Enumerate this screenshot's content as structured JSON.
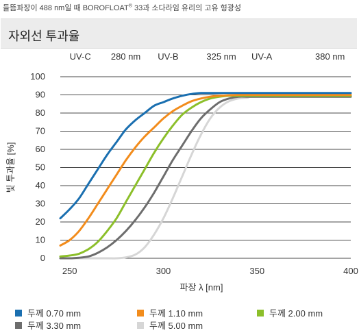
{
  "caption": {
    "prefix": "들뜸파장이 488 nm일 때 BOROFLOAT",
    "reg": "®",
    "suffix": " 33과 소다라임 유리의 고유 형광성"
  },
  "header": {
    "title": "자외선 투과율"
  },
  "chart_data": {
    "type": "line",
    "title": "",
    "xlabel": "파장 λ [nm]",
    "ylabel": "빛 투과율 [%]",
    "xlim": [
      245,
      400
    ],
    "ylim": [
      0,
      100
    ],
    "xticks": [
      250,
      300,
      350,
      400
    ],
    "yticks": [
      0,
      10,
      20,
      30,
      40,
      50,
      60,
      70,
      80,
      90,
      100
    ],
    "grid": "horizontal",
    "legend_position": "bottom",
    "band_labels": [
      {
        "text": "UV-C",
        "x": 250
      },
      {
        "text": "280 nm",
        "x": 272
      },
      {
        "text": "UV-B",
        "x": 297
      },
      {
        "text": "325 nm",
        "x": 323
      },
      {
        "text": "UV-A",
        "x": 347
      },
      {
        "text": "380 nm",
        "x": 381
      }
    ],
    "series": [
      {
        "name": "두께 0.70 mm",
        "color": "#1a6fb0",
        "x": [
          245,
          250,
          255,
          260,
          265,
          270,
          275,
          280,
          285,
          290,
          295,
          300,
          305,
          310,
          315,
          320,
          325,
          330,
          340,
          350,
          400
        ],
        "y": [
          22,
          27,
          33,
          41,
          49,
          57,
          64,
          71,
          76,
          80,
          84,
          86,
          88,
          89.5,
          90.5,
          91,
          91,
          91,
          91,
          91,
          91
        ]
      },
      {
        "name": "두께 1.10 mm",
        "color": "#f28c1c",
        "x": [
          245,
          250,
          255,
          260,
          265,
          270,
          275,
          280,
          285,
          290,
          295,
          300,
          305,
          310,
          315,
          320,
          325,
          330,
          340,
          350,
          400
        ],
        "y": [
          7,
          10,
          15,
          22,
          30,
          38,
          46,
          54,
          61,
          67,
          72,
          77,
          81,
          84,
          86.5,
          88,
          89,
          89.5,
          90,
          90,
          90
        ]
      },
      {
        "name": "두께 2.00 mm",
        "color": "#8cbf2a",
        "x": [
          245,
          250,
          255,
          260,
          265,
          270,
          275,
          280,
          285,
          290,
          295,
          300,
          305,
          310,
          315,
          320,
          325,
          330,
          335,
          340,
          350,
          400
        ],
        "y": [
          1,
          1.5,
          2.5,
          5,
          9,
          15,
          22,
          31,
          40,
          49,
          58,
          66,
          73,
          79,
          83,
          86,
          88,
          89,
          89.5,
          89.5,
          89.5,
          89.5
        ]
      },
      {
        "name": "두께 3.30 mm",
        "color": "#6d6d6d",
        "x": [
          245,
          250,
          255,
          260,
          265,
          270,
          275,
          280,
          285,
          290,
          295,
          300,
          305,
          310,
          315,
          320,
          325,
          330,
          335,
          340,
          345,
          350,
          400
        ],
        "y": [
          0,
          0,
          0.3,
          1,
          3,
          6,
          10,
          15,
          21,
          28,
          36,
          45,
          54,
          62,
          70,
          77,
          82,
          86,
          88,
          89,
          89,
          89,
          89
        ]
      },
      {
        "name": "두께 5.00 mm",
        "color": "#d6d6d6",
        "x": [
          245,
          270,
          275,
          280,
          285,
          290,
          295,
          300,
          305,
          310,
          315,
          320,
          325,
          330,
          335,
          340,
          345,
          350,
          400
        ],
        "y": [
          0,
          0,
          0,
          0.5,
          2,
          6,
          13,
          22,
          33,
          45,
          57,
          68,
          77,
          83,
          86.5,
          88,
          88.5,
          89,
          89
        ]
      }
    ]
  }
}
